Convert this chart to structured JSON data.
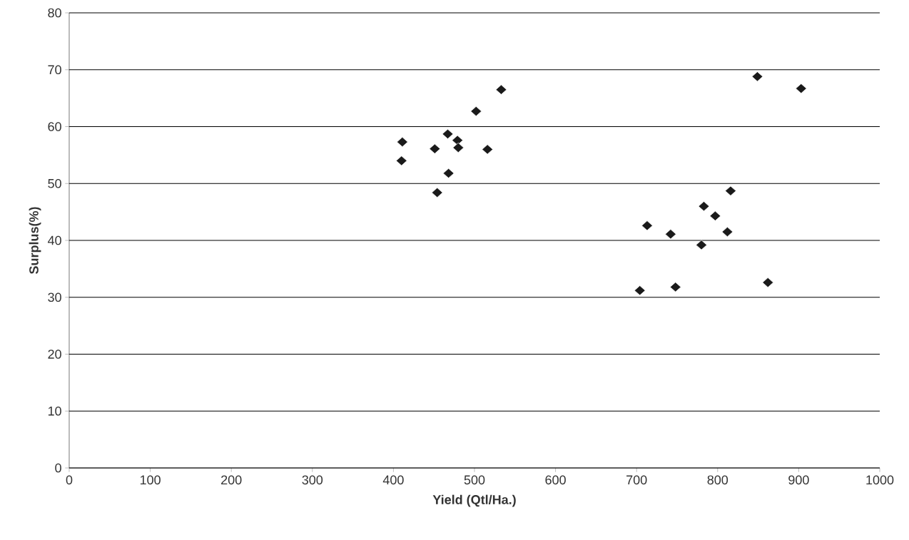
{
  "chart_data": {
    "type": "scatter",
    "xlabel": "Yield (Qtl/Ha.)",
    "ylabel": "Surplus(%)",
    "x": [
      411,
      410,
      451,
      454,
      467,
      468,
      479,
      480,
      502,
      516,
      533,
      704,
      713,
      742,
      748,
      780,
      783,
      797,
      812,
      816,
      849,
      862,
      903
    ],
    "values": [
      57.3,
      54.0,
      56.1,
      48.4,
      58.7,
      51.8,
      57.6,
      56.3,
      62.7,
      56.0,
      66.5,
      31.2,
      42.6,
      41.1,
      31.8,
      39.2,
      46.0,
      44.3,
      41.5,
      48.7,
      68.8,
      32.6,
      66.7
    ],
    "color": "#1a1a1a",
    "marker": "diamond",
    "grid": "y",
    "xlim": [
      0,
      1000
    ],
    "ylim": [
      0,
      80
    ],
    "xticks": [
      0,
      100,
      200,
      300,
      400,
      500,
      600,
      700,
      800,
      900,
      1000
    ],
    "yticks": [
      0,
      10,
      20,
      30,
      40,
      50,
      60,
      70,
      80
    ]
  }
}
